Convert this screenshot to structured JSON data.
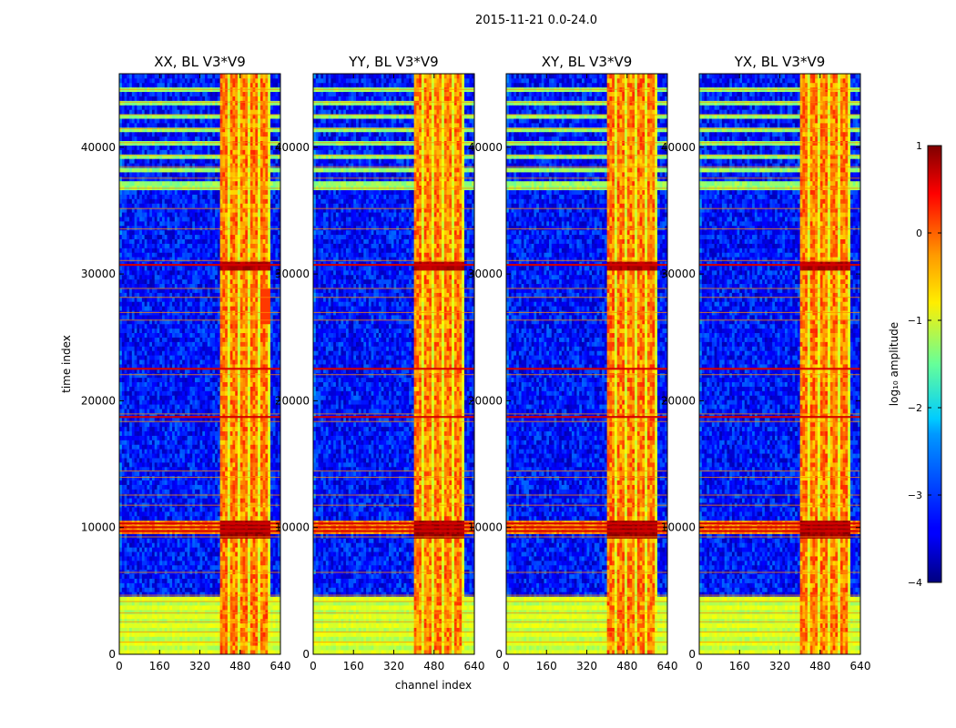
{
  "figure": {
    "suptitle": "2015-11-21 0.0-24.0",
    "xlabel": "channel index",
    "ylabel": "time index",
    "colorbar_label": "log₁₀ amplitude"
  },
  "chart_data": {
    "type": "heatmap",
    "colormap": "jet",
    "colorbar": {
      "range": [
        -4,
        1
      ],
      "ticks": [
        "1",
        "0",
        "−1",
        "−2",
        "−3",
        "−4"
      ]
    },
    "x_ticks": [
      0,
      160,
      320,
      480,
      640
    ],
    "x_range": [
      0,
      640
    ],
    "y_ticks": [
      0,
      10000,
      20000,
      30000,
      40000
    ],
    "y_range": [
      0,
      45800
    ],
    "rfi_channel_band": [
      400,
      600
    ],
    "strong_rfi_times": [
      10000,
      30700
    ],
    "low_noise_floor": -3.3,
    "panels": [
      {
        "title": "XX, BL V3*V9"
      },
      {
        "title": "YY, BL V3*V9"
      },
      {
        "title": "XY, BL V3*V9"
      },
      {
        "title": "YX, BL V3*V9"
      }
    ]
  },
  "colors": {
    "background": "#ffffff",
    "axis": "#000000"
  }
}
